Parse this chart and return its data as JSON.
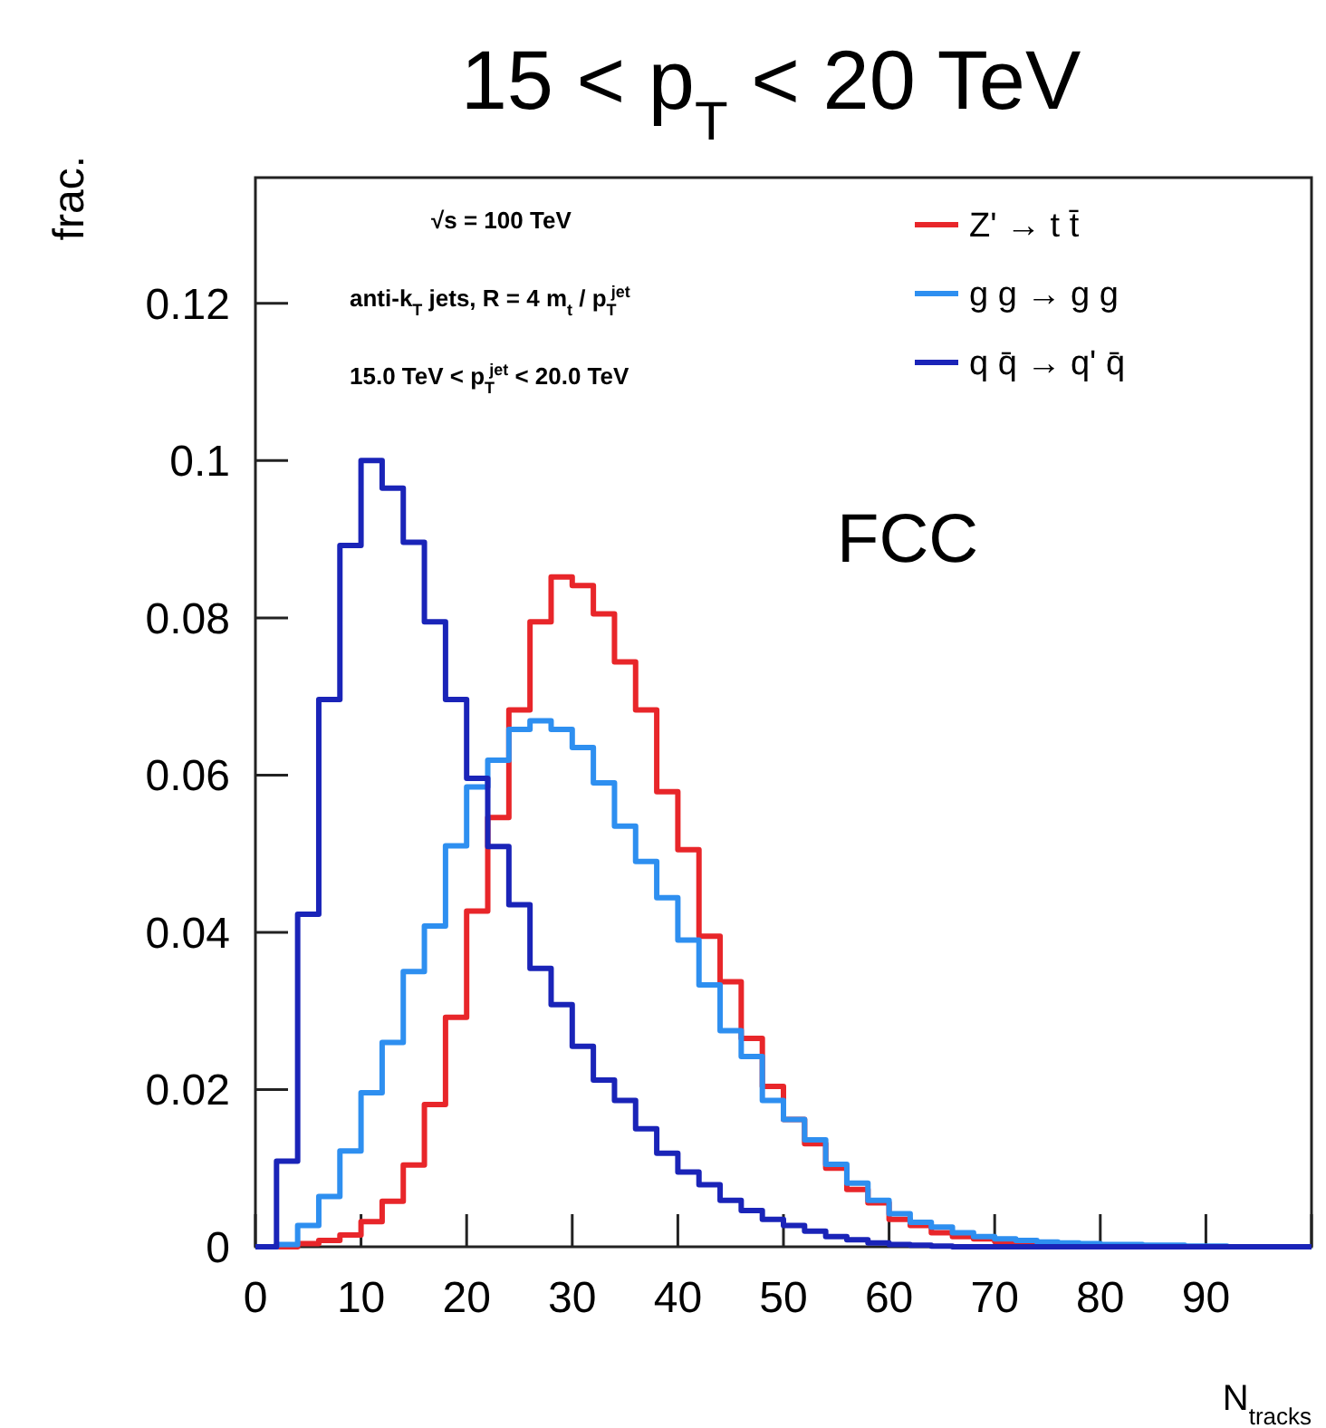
{
  "chart_data": {
    "type": "histogram",
    "title": "15 < p$_{T}$ < 20 TeV",
    "xlabel": "N$_{tracks}$",
    "ylabel": "frac.",
    "bins": [
      0,
      2,
      4,
      6,
      8,
      10,
      12,
      14,
      16,
      18,
      20,
      22,
      24,
      26,
      28,
      30,
      32,
      34,
      36,
      38,
      40,
      42,
      44,
      46,
      48,
      50,
      52,
      54,
      56,
      58,
      60,
      62,
      64,
      66,
      68,
      70,
      72,
      74,
      76,
      78,
      80,
      82,
      84,
      86,
      88,
      90,
      92,
      94,
      96,
      98,
      100
    ],
    "series": [
      {
        "name": "Z' → t t̄",
        "color": "#e8262a",
        "values": [
          0,
          0,
          0.0004,
          0.0008,
          0.0015,
          0.0032,
          0.0058,
          0.0104,
          0.0181,
          0.0292,
          0.0427,
          0.0546,
          0.0683,
          0.0795,
          0.0852,
          0.0841,
          0.0805,
          0.0744,
          0.0683,
          0.0579,
          0.0505,
          0.0395,
          0.0337,
          0.0265,
          0.0204,
          0.0162,
          0.0131,
          0.01,
          0.0073,
          0.0056,
          0.0035,
          0.0027,
          0.0018,
          0.0013,
          0.001,
          0.0007,
          0.0005,
          0.0004,
          0.0003,
          0.0002,
          0.0002,
          0.0001,
          0.0001,
          0,
          0,
          0,
          0,
          0,
          0,
          0
        ]
      },
      {
        "name": "g g → g g",
        "color": "#2e8ff0",
        "values": [
          0,
          0.0003,
          0.0027,
          0.0064,
          0.0122,
          0.0196,
          0.026,
          0.035,
          0.0408,
          0.051,
          0.0585,
          0.0619,
          0.0658,
          0.0669,
          0.0658,
          0.0635,
          0.059,
          0.0535,
          0.049,
          0.0444,
          0.039,
          0.0333,
          0.0275,
          0.0242,
          0.0186,
          0.0162,
          0.0136,
          0.0105,
          0.0081,
          0.0059,
          0.0042,
          0.0031,
          0.0025,
          0.0018,
          0.0013,
          0.001,
          0.0008,
          0.0006,
          0.0005,
          0.0004,
          0.0003,
          0.0003,
          0.0002,
          0.0002,
          0.0001,
          0.0001,
          0,
          0,
          0,
          0
        ]
      },
      {
        "name": "q q̄ → q' q̄",
        "color": "#1a24b8",
        "values": [
          0,
          0.0109,
          0.0423,
          0.0696,
          0.0892,
          0.1,
          0.0965,
          0.0896,
          0.0795,
          0.0696,
          0.0596,
          0.0509,
          0.0435,
          0.0354,
          0.0308,
          0.0255,
          0.0212,
          0.0186,
          0.015,
          0.0119,
          0.0095,
          0.0079,
          0.0059,
          0.0046,
          0.0035,
          0.0027,
          0.002,
          0.0013,
          0.0009,
          0.0005,
          0.0003,
          0.0002,
          0.0001,
          0,
          0,
          0,
          0,
          0,
          0,
          0,
          0,
          0,
          0,
          0,
          0,
          0,
          0,
          0,
          0,
          0
        ]
      }
    ],
    "xlim": [
      0,
      100
    ],
    "xticks": [
      0,
      10,
      20,
      30,
      40,
      50,
      60,
      70,
      80,
      90,
      {
        "value": 100,
        "label": null
      }
    ],
    "ylim": [
      0,
      0.136
    ],
    "yticks": [
      0,
      0.02,
      0.04,
      0.06,
      0.08,
      0.1,
      0.12
    ],
    "legend": "top right",
    "grid": false,
    "annotations": [
      "√s = 100 TeV",
      "anti-k$_{T}$ jets, R = 4 m$_{t}$ / p$_{T}$$^{jet}$",
      "15.0 TeV < p$_{T}$$^{jet}$ < 20.0 TeV",
      "FCC"
    ]
  }
}
